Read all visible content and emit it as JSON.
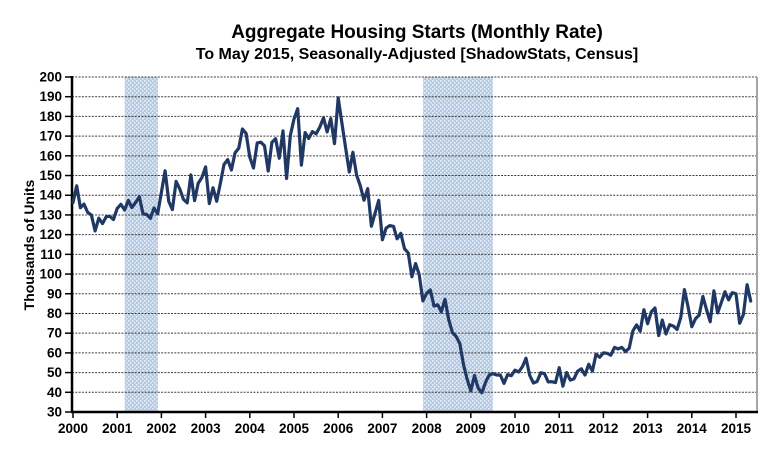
{
  "chart_data": {
    "type": "line",
    "title": "Aggregate Housing Starts (Monthly Rate)",
    "subtitle": "To May 2015, Seasonally-Adjusted [ShadowStats, Census]",
    "ylabel": "Thousands of Units",
    "xlabel": "",
    "ylim": [
      30,
      200
    ],
    "y_tick_step": 10,
    "x_tick_labels": [
      "2000",
      "2001",
      "2002",
      "2003",
      "2004",
      "2005",
      "2006",
      "2007",
      "2008",
      "2009",
      "2010",
      "2011",
      "2012",
      "2013",
      "2014",
      "2015"
    ],
    "x_start": "2000-01",
    "x_end": "2015-05",
    "grid": "horizontal-dashed",
    "legend": "none",
    "series": [
      {
        "name": "Aggregate Housing Starts (thousands of units, monthly rate)",
        "start_year": 2000,
        "frequency": "monthly",
        "values": [
          136.3,
          144.8,
          133.7,
          135.5,
          131.3,
          129.9,
          121.9,
          128.4,
          125.6,
          129.1,
          129.3,
          127.7,
          133.3,
          135.4,
          132.5,
          137.4,
          133.8,
          136.3,
          139.2,
          130.6,
          130.2,
          128.3,
          133.5,
          130.7,
          141.5,
          152.4,
          136.8,
          132.7,
          147.0,
          143.1,
          137.9,
          136.1,
          150.3,
          137.3,
          146.1,
          149.0,
          154.4,
          135.8,
          143.8,
          136.9,
          145.9,
          155.6,
          158.1,
          152.8,
          161.6,
          163.9,
          173.6,
          171.4,
          159.3,
          153.8,
          166.5,
          166.9,
          165.1,
          152.3,
          166.8,
          168.7,
          158.8,
          172.7,
          148.5,
          170.2,
          178.7,
          183.9,
          155.3,
          171.8,
          168.8,
          172.3,
          171.2,
          174.6,
          179.3,
          172.1,
          178.9,
          166.2,
          189.4,
          176.6,
          164.1,
          151.8,
          161.8,
          150.2,
          144.8,
          137.5,
          143.3,
          124.3,
          130.8,
          137.4,
          117.4,
          123.3,
          124.6,
          124.2,
          117.9,
          120.7,
          112.8,
          110.8,
          98.6,
          105.3,
          99.8,
          86.4,
          90.3,
          91.9,
          83.8,
          84.4,
          80.9,
          87.2,
          76.9,
          70.3,
          68.3,
          64.8,
          54.3,
          46.7,
          40.8,
          48.5,
          42.1,
          39.8,
          45.0,
          48.8,
          49.5,
          48.8,
          48.8,
          44.5,
          49.0,
          48.4,
          51.2,
          50.3,
          53.0,
          57.3,
          48.6,
          44.7,
          45.5,
          49.9,
          49.5,
          45.3,
          45.4,
          44.9,
          52.5,
          43.1,
          50.0,
          46.2,
          46.8,
          50.7,
          51.9,
          48.8,
          54.2,
          50.8,
          59.3,
          57.8,
          60.0,
          59.8,
          58.8,
          62.8,
          62.0,
          62.8,
          60.7,
          62.4,
          71.2,
          74.2,
          71.0,
          81.9,
          74.8,
          80.8,
          82.8,
          68.8,
          76.7,
          69.6,
          74.3,
          73.6,
          71.9,
          78.0,
          92.1,
          83.3,
          73.3,
          77.3,
          79.2,
          88.6,
          82.0,
          75.8,
          91.5,
          80.3,
          85.5,
          91.0,
          86.9,
          90.6,
          90.0,
          75.0,
          79.5,
          94.6,
          86.3
        ]
      }
    ],
    "recession_bands": [
      {
        "start": 2001.17,
        "end": 2001.92
      },
      {
        "start": 2007.92,
        "end": 2009.5
      }
    ],
    "colors": {
      "line": "#1f3864",
      "band": "#b3c9e4",
      "band_dot": "#e4edf8",
      "grid": "#3c3c3c",
      "axis": "#000000",
      "right_border": "#a6a6a6",
      "background": "#ffffff"
    }
  }
}
